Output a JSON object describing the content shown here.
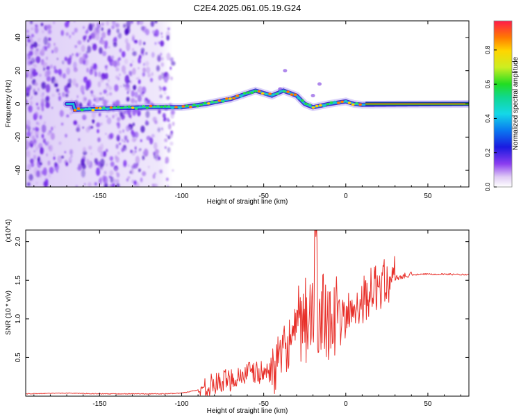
{
  "page_title": "C2E4.2025.061.05.19.G24",
  "chart_data": [
    {
      "type": "heatmap",
      "title": "C2E4.2025.061.05.19.G24",
      "xlabel": "Height of straight line (km)",
      "ylabel": "Frequency (Hz)",
      "xlim": [
        -195,
        75
      ],
      "ylim": [
        -50,
        50
      ],
      "xticks": [
        -150,
        -100,
        -50,
        0,
        50
      ],
      "yticks": [
        -40,
        -20,
        0,
        20,
        40
      ],
      "colorbar": {
        "label": "Normalized spectral amplitude",
        "range": [
          0,
          0.97
        ],
        "ticks": [
          0.0,
          0.2,
          0.4,
          0.6,
          0.8
        ]
      },
      "ridge": [
        {
          "x": -165,
          "y": -3.5
        },
        {
          "x": -150,
          "y": -3
        },
        {
          "x": -140,
          "y": -2.5
        },
        {
          "x": -120,
          "y": -2
        },
        {
          "x": -100,
          "y": -2
        },
        {
          "x": -85,
          "y": 0
        },
        {
          "x": -70,
          "y": 3
        },
        {
          "x": -55,
          "y": 8
        },
        {
          "x": -45,
          "y": 5
        },
        {
          "x": -38,
          "y": 8
        },
        {
          "x": -30,
          "y": 5
        },
        {
          "x": -25,
          "y": 0
        },
        {
          "x": -20,
          "y": -2
        },
        {
          "x": -10,
          "y": 0
        },
        {
          "x": 0,
          "y": 1.5
        },
        {
          "x": 5,
          "y": 0
        },
        {
          "x": 10,
          "y": -0.5
        },
        {
          "x": 75,
          "y": 0
        }
      ]
    },
    {
      "type": "line",
      "xlabel": "Height of straight line (km)",
      "ylabel": "SNR (10 * v/v)",
      "y_multiplier": "(x10^4)",
      "xlim": [
        -195,
        75
      ],
      "ylim": [
        0,
        2.15
      ],
      "xticks": [
        -150,
        -100,
        -50,
        0,
        50
      ],
      "yticks": [
        0.5,
        1.0,
        1.5,
        2.0
      ],
      "series": [
        {
          "name": "SNR",
          "color": "#e8302a",
          "x": [
            -195,
            -170,
            -150,
            -130,
            -110,
            -100,
            -90,
            -80,
            -70,
            -60,
            -50,
            -45,
            -40,
            -35,
            -30,
            -25,
            -20,
            -15,
            -10,
            -5,
            0,
            5,
            10,
            15,
            20,
            25,
            30,
            40,
            50,
            60,
            75
          ],
          "y": [
            0.03,
            0.04,
            0.03,
            0.03,
            0.03,
            0.04,
            0.08,
            0.15,
            0.22,
            0.3,
            0.3,
            0.35,
            0.45,
            0.7,
            0.8,
            0.95,
            1.05,
            1.15,
            1.05,
            0.95,
            1.0,
            1.15,
            1.25,
            1.35,
            1.42,
            1.48,
            1.53,
            1.57,
            1.58,
            1.58,
            1.57
          ]
        }
      ]
    }
  ]
}
